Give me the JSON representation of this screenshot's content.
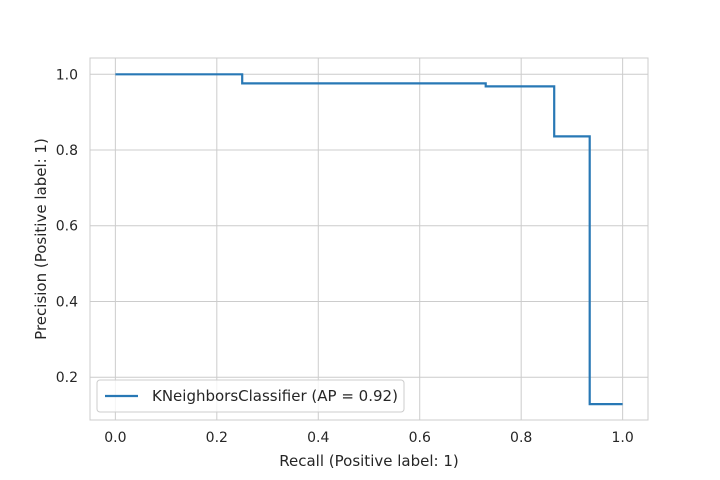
{
  "chart_data": {
    "type": "line",
    "step": "post",
    "xlabel": "Recall (Positive label: 1)",
    "ylabel": "Precision (Positive label: 1)",
    "xlim": [
      -0.05,
      1.05
    ],
    "ylim": [
      0.087,
      1.043
    ],
    "xticks": [
      "0.0",
      "0.2",
      "0.4",
      "0.6",
      "0.8",
      "1.0"
    ],
    "yticks": [
      "0.2",
      "0.4",
      "0.6",
      "0.8",
      "1.0"
    ],
    "grid": true,
    "legend_position": "lower-left",
    "series": [
      {
        "name": "KNeighborsClassifier (AP = 0.92)",
        "color": "#2878b5",
        "x": [
          0.0,
          0.25,
          0.25,
          0.73,
          0.73,
          0.865,
          0.865,
          0.935,
          0.935,
          1.0
        ],
        "y": [
          1.0,
          1.0,
          0.976,
          0.976,
          0.968,
          0.968,
          0.836,
          0.836,
          0.129,
          0.129
        ]
      }
    ]
  }
}
